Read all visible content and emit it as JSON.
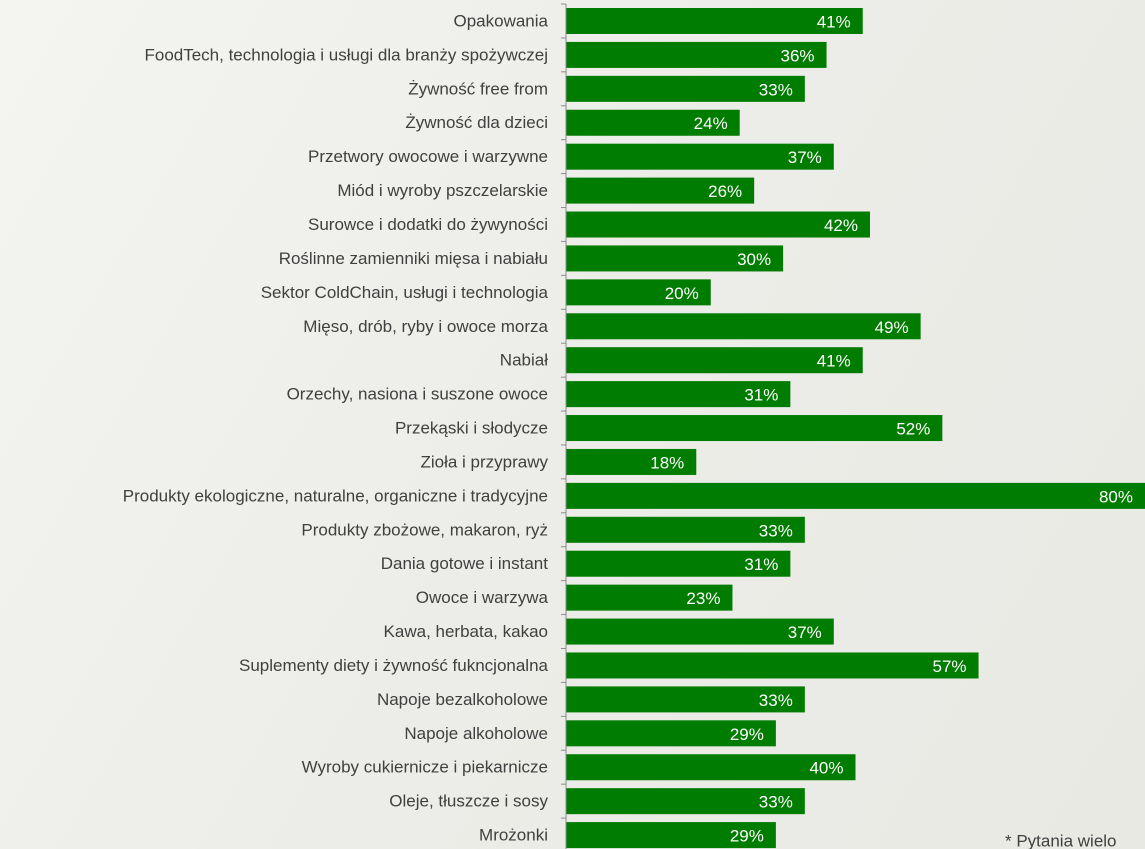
{
  "chart_data": {
    "type": "barh",
    "categories": [
      "Opakowania",
      "FoodTech, technologia i usługi dla branży spożywczej",
      "Żywność free from",
      "Żywność dla dzieci",
      "Przetwory owocowe i warzywne",
      "Miód i wyroby pszczelarskie",
      "Surowce i dodatki do żywyności",
      "Roślinne zamienniki mięsa i nabiału",
      "Sektor ColdChain, usługi i technologia",
      "Mięso, drób, ryby i owoce morza",
      "Nabiał",
      "Orzechy, nasiona i suszone owoce",
      "Przekąski i słodycze",
      "Zioła i przyprawy",
      "Produkty ekologiczne, naturalne, organiczne i tradycyjne",
      "Produkty zbożowe, makaron, ryż",
      "Dania gotowe i instant",
      "Owoce i warzywa",
      "Kawa, herbata, kakao",
      "Suplementy diety i żywność fukncjonalna",
      "Napoje bezalkoholowe",
      "Napoje alkoholowe",
      "Wyroby cukiernicze i piekarnicze",
      "Oleje, tłuszcze i sosy",
      "Mrożonki"
    ],
    "values": [
      41,
      36,
      33,
      24,
      37,
      26,
      42,
      30,
      20,
      49,
      41,
      31,
      52,
      18,
      80,
      33,
      31,
      23,
      37,
      57,
      33,
      29,
      40,
      33,
      29
    ],
    "value_labels": [
      "41%",
      "36%",
      "33%",
      "24%",
      "37%",
      "26%",
      "42%",
      "30%",
      "20%",
      "49%",
      "41%",
      "31%",
      "52%",
      "18%",
      "80%",
      "33%",
      "31%",
      "23%",
      "37%",
      "57%",
      "33%",
      "29%",
      "40%",
      "33%",
      "29%"
    ],
    "color": "#007c00",
    "xlim": [
      0,
      80
    ],
    "footnote": "* Pytania wielo"
  }
}
